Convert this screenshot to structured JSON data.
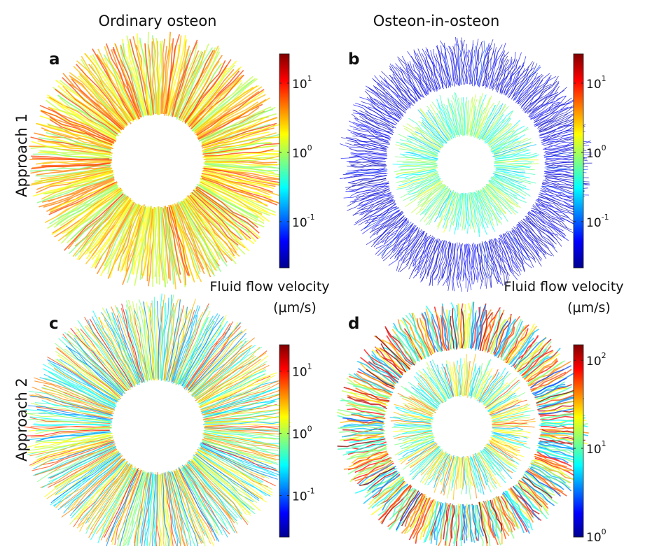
{
  "column_titles": [
    "Ordinary osteon",
    "Osteon-in-osteon"
  ],
  "row_labels": [
    "Approach 1",
    "Approach 2"
  ],
  "panels": [
    {
      "letter": "a",
      "colorbar": {
        "scale": "log",
        "lim": [
          0.0215,
          26.5
        ],
        "ticks": [
          {
            "value": 10,
            "label": "10",
            "exponent": "1"
          },
          {
            "value": 1,
            "label": "10",
            "exponent": "0"
          },
          {
            "value": 0.1,
            "label": "10",
            "exponent": "-1"
          }
        ]
      }
    },
    {
      "letter": "b",
      "colorbar": {
        "scale": "log",
        "lim": [
          0.0215,
          26.5
        ],
        "ticks": [
          {
            "value": 10,
            "label": "10",
            "exponent": "1"
          },
          {
            "value": 1,
            "label": "10",
            "exponent": "0"
          },
          {
            "value": 0.1,
            "label": "10",
            "exponent": "-1"
          }
        ]
      }
    },
    {
      "letter": "c",
      "colorbar": {
        "title": "Fluid flow velocity",
        "unit": "(μm/s)",
        "scale": "log",
        "lim": [
          0.0215,
          26.5
        ],
        "ticks": [
          {
            "value": 10,
            "label": "10",
            "exponent": "1"
          },
          {
            "value": 1,
            "label": "10",
            "exponent": "0"
          },
          {
            "value": 0.1,
            "label": "10",
            "exponent": "-1"
          }
        ]
      }
    },
    {
      "letter": "d",
      "colorbar": {
        "title": "Fluid flow velocity",
        "unit": "(μm/s)",
        "scale": "log",
        "lim": [
          0.98,
          150
        ],
        "ticks": [
          {
            "value": 100,
            "label": "10",
            "exponent": "2"
          },
          {
            "value": 10,
            "label": "10",
            "exponent": "1"
          },
          {
            "value": 1,
            "label": "10",
            "exponent": "0"
          }
        ]
      }
    }
  ]
}
